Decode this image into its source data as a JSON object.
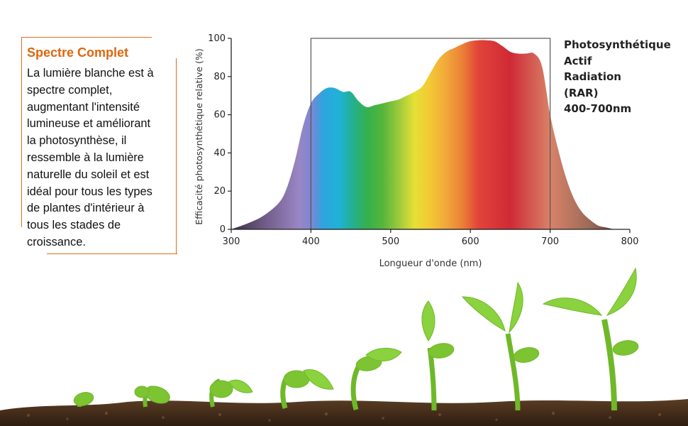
{
  "info": {
    "title": "Spectre Complet",
    "lines": [
      "La lumière blanche est à",
      "spectre complet,",
      "augmentant l'intensité",
      "lumineuse et améliorant",
      "la photosynthèse, il",
      "ressemble à la lumière",
      "naturelle du soleil et est",
      "idéal pour tous les types",
      "de plantes d'intérieur à",
      "tous les stades de",
      "croissance."
    ]
  },
  "rar_label": {
    "lines": [
      "Photosynthétique",
      "Actif",
      "Radiation",
      "(RAR)",
      "400-700nm"
    ]
  },
  "chart_data": {
    "type": "area",
    "title": "",
    "xlabel": "Longueur d'onde (nm)",
    "ylabel": "Efficacité photosynthétique relative (%)",
    "xlim": [
      300,
      800
    ],
    "ylim": [
      0,
      100
    ],
    "xticks": [
      300,
      400,
      500,
      600,
      700,
      800
    ],
    "yticks": [
      0,
      20,
      40,
      60,
      80,
      100
    ],
    "grid": false,
    "highlight_range": [
      400,
      700
    ],
    "x": [
      300,
      320,
      340,
      360,
      370,
      380,
      390,
      400,
      410,
      420,
      430,
      440,
      450,
      460,
      470,
      480,
      490,
      500,
      510,
      520,
      530,
      540,
      550,
      560,
      570,
      580,
      590,
      600,
      610,
      620,
      630,
      640,
      650,
      660,
      670,
      680,
      690,
      700,
      710,
      720,
      730,
      740,
      750,
      760,
      770,
      780
    ],
    "values": [
      0,
      3,
      7,
      14,
      22,
      36,
      54,
      66,
      71,
      74,
      74,
      72,
      72,
      67,
      64,
      65,
      66,
      67,
      68,
      70,
      72,
      75,
      82,
      89,
      93,
      95,
      97,
      98.5,
      99,
      99,
      98.5,
      96,
      93,
      92,
      92,
      92,
      85,
      60,
      42,
      27,
      16,
      9,
      5,
      2,
      1,
      0
    ]
  }
}
